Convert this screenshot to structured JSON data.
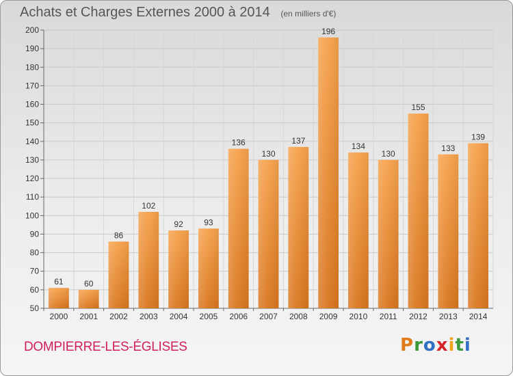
{
  "header": {
    "title": "Achats et Charges Externes 2000 à 2014",
    "subtitle": "(en milliers d'€)"
  },
  "footer": {
    "city": "DOMPIERRE-LES-ÉGLISES",
    "logo_letters": [
      "P",
      "r",
      "o",
      "x",
      "i",
      "t",
      "i"
    ],
    "logo_colors": [
      "#e07b1a",
      "#3a9a3a",
      "#2f6fc4",
      "#d6232a",
      "#f0a21a",
      "#3a9a3a",
      "#2f6fc4"
    ]
  },
  "chart_data": {
    "type": "bar",
    "title": "Achats et Charges Externes 2000 à 2014",
    "subtitle": "(en milliers d'€)",
    "categories": [
      "2000",
      "2001",
      "2002",
      "2003",
      "2004",
      "2005",
      "2006",
      "2007",
      "2008",
      "2009",
      "2010",
      "2011",
      "2012",
      "2013",
      "2014"
    ],
    "values": [
      61,
      60,
      86,
      102,
      92,
      93,
      136,
      130,
      137,
      196,
      134,
      130,
      155,
      133,
      139
    ],
    "ylim": [
      50,
      200
    ],
    "yticks": [
      50,
      60,
      70,
      80,
      90,
      100,
      110,
      120,
      130,
      140,
      150,
      160,
      170,
      180,
      190,
      200
    ],
    "grid": true,
    "bar_color": "#f0923a"
  }
}
